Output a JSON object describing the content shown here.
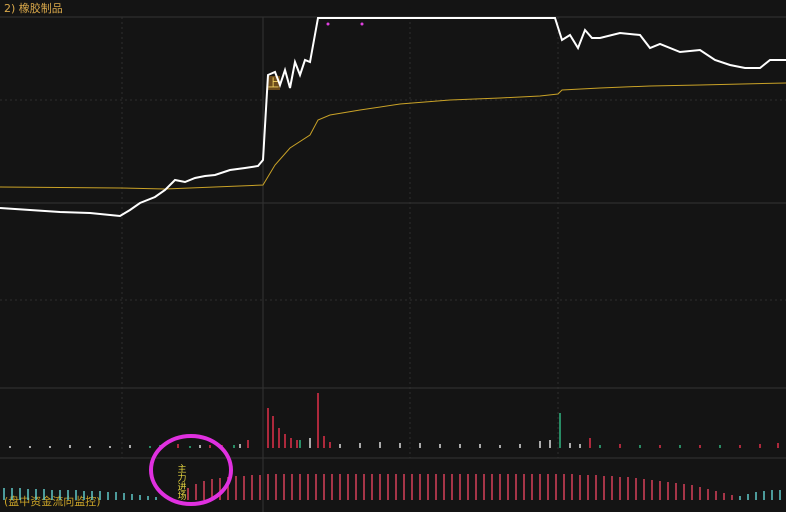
{
  "chart_data": {
    "type": "intraday",
    "title": "2) 橡胶制品",
    "marker_label": "上",
    "signal_label": "主力进场",
    "indicator_label": "(盘中资金流向监控)",
    "xlim": [
      0,
      786
    ],
    "ylim": [
      12,
      400
    ],
    "price": {
      "color": "#ffffff",
      "x": [
        0,
        30,
        60,
        90,
        120,
        130,
        140,
        155,
        165,
        175,
        185,
        195,
        205,
        215,
        230,
        245,
        258,
        263,
        268,
        275,
        280,
        285,
        290,
        295,
        300,
        305,
        310,
        318,
        555,
        562,
        570,
        578,
        585,
        592,
        600,
        620,
        640,
        650,
        660,
        680,
        700,
        715,
        730,
        745,
        760,
        770,
        786
      ],
      "values": [
        192,
        190,
        188,
        187,
        184,
        190,
        197,
        203,
        210,
        220,
        218,
        222,
        224,
        225,
        230,
        232,
        234,
        240,
        325,
        328,
        315,
        330,
        312,
        338,
        325,
        340,
        338,
        382,
        382,
        360,
        365,
        352,
        370,
        362,
        362,
        367,
        365,
        352,
        356,
        348,
        350,
        340,
        335,
        332,
        332,
        340,
        340
      ]
    },
    "average": {
      "color": "#c9a227",
      "x": [
        0,
        120,
        165,
        263,
        275,
        290,
        310,
        318,
        330,
        360,
        400,
        450,
        500,
        540,
        558,
        562,
        600,
        650,
        700,
        786
      ],
      "values": [
        213,
        212,
        211,
        215,
        235,
        252,
        265,
        280,
        285,
        290,
        296,
        300,
        302,
        304,
        306,
        310,
        312,
        314,
        315,
        317
      ]
    },
    "volume_ylim": [
      0,
      60
    ],
    "volume": [
      {
        "color": "#e0304a",
        "x": [
          178,
          210,
          222,
          248,
          268,
          273,
          279,
          285,
          291,
          297,
          318,
          324,
          330,
          590,
          620,
          660,
          700,
          740,
          760,
          778
        ],
        "values": [
          4,
          3,
          3,
          8,
          40,
          32,
          20,
          14,
          10,
          8,
          55,
          12,
          6,
          10,
          4,
          3,
          3,
          3,
          4,
          5
        ]
      },
      {
        "color": "#2fb380",
        "x": [
          150,
          160,
          190,
          234,
          300,
          560,
          600,
          640,
          680,
          720
        ],
        "values": [
          2,
          3,
          2,
          3,
          8,
          35,
          3,
          3,
          3,
          3
        ]
      },
      {
        "color": "#dddddd",
        "x": [
          10,
          30,
          50,
          70,
          90,
          110,
          130,
          200,
          240,
          310,
          340,
          360,
          380,
          400,
          420,
          440,
          460,
          480,
          500,
          520,
          540,
          550,
          570,
          580
        ],
        "values": [
          2,
          2,
          2,
          3,
          2,
          2,
          3,
          3,
          4,
          10,
          4,
          5,
          6,
          5,
          5,
          4,
          4,
          4,
          3,
          4,
          7,
          8,
          5,
          4
        ]
      }
    ],
    "indicator_ylim": [
      0,
      40
    ],
    "indicator": [
      {
        "color": "#5fc8c8",
        "x": [
          4,
          12,
          20,
          28,
          36,
          44,
          52,
          60,
          68,
          76,
          84,
          92,
          100,
          108,
          116,
          124,
          132,
          140,
          148,
          156
        ],
        "values": [
          12,
          12,
          12,
          11,
          11,
          11,
          10,
          10,
          10,
          10,
          9,
          9,
          9,
          8,
          8,
          7,
          6,
          5,
          4,
          3
        ]
      },
      {
        "color": "#d6405a",
        "x": [
          188,
          196,
          204,
          212,
          220,
          228,
          236,
          244,
          252,
          260,
          268,
          276,
          284,
          292,
          300,
          308,
          316,
          324,
          332,
          340,
          348,
          356,
          364,
          372,
          380,
          388,
          396,
          404,
          412,
          420,
          428,
          436,
          444,
          452,
          460,
          468,
          476,
          484,
          492,
          500,
          508,
          516,
          524,
          532,
          540,
          548,
          556,
          564,
          572,
          580,
          588,
          596,
          604,
          612,
          620,
          628,
          636,
          644,
          652,
          660,
          668,
          676,
          684,
          692,
          700,
          708,
          716,
          724,
          732
        ],
        "values": [
          12,
          16,
          19,
          21,
          22,
          23,
          24,
          24,
          25,
          25,
          26,
          26,
          26,
          26,
          26,
          26,
          26,
          26,
          26,
          26,
          26,
          26,
          26,
          26,
          26,
          26,
          26,
          26,
          26,
          26,
          26,
          26,
          26,
          26,
          26,
          26,
          26,
          26,
          26,
          26,
          26,
          26,
          26,
          26,
          26,
          26,
          26,
          26,
          26,
          25,
          25,
          25,
          24,
          24,
          23,
          23,
          22,
          21,
          20,
          19,
          18,
          17,
          16,
          15,
          13,
          11,
          9,
          7,
          5
        ]
      },
      {
        "color": "#5fc8c8",
        "x": [
          740,
          748,
          756,
          764,
          772,
          780
        ],
        "values": [
          4,
          6,
          8,
          9,
          10,
          10
        ]
      }
    ]
  }
}
